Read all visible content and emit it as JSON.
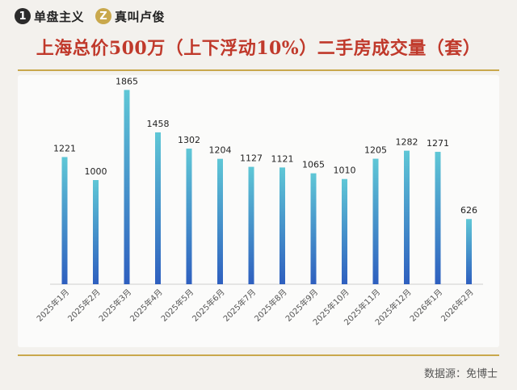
{
  "brand": {
    "logo1_mark": "1",
    "logo1_text": "单盘主义",
    "logo2_mark": "Z",
    "logo2_text": "真叫卢俊",
    "logo1_color": "#2b2b2b",
    "logo2_color": "#c9a84c"
  },
  "title": "上海总价500万（上下浮动10%）二手房成交量（套）",
  "source": "数据源：免博士",
  "colors": {
    "title": "#c0392b",
    "accent_rule": "#c9a84c",
    "bar_top": "#5fc7d6",
    "bar_bottom": "#2e5fbf"
  },
  "chart_data": {
    "type": "bar",
    "title": "上海总价500万（上下浮动10%）二手房成交量（套）",
    "xlabel": "",
    "ylabel": "",
    "categories": [
      "2025年1月",
      "2025年2月",
      "2025年3月",
      "2025年4月",
      "2025年5月",
      "2025年6月",
      "2025年7月",
      "2025年8月",
      "2025年9月",
      "2025年10月",
      "2025年11月",
      "2025年12月",
      "2026年1月",
      "2026年2月"
    ],
    "values": [
      1221,
      1000,
      1865,
      1458,
      1302,
      1204,
      1127,
      1121,
      1065,
      1010,
      1205,
      1282,
      1271,
      626
    ],
    "ylim": [
      0,
      2000
    ],
    "grid": false,
    "legend": "none",
    "data_labels": true
  }
}
